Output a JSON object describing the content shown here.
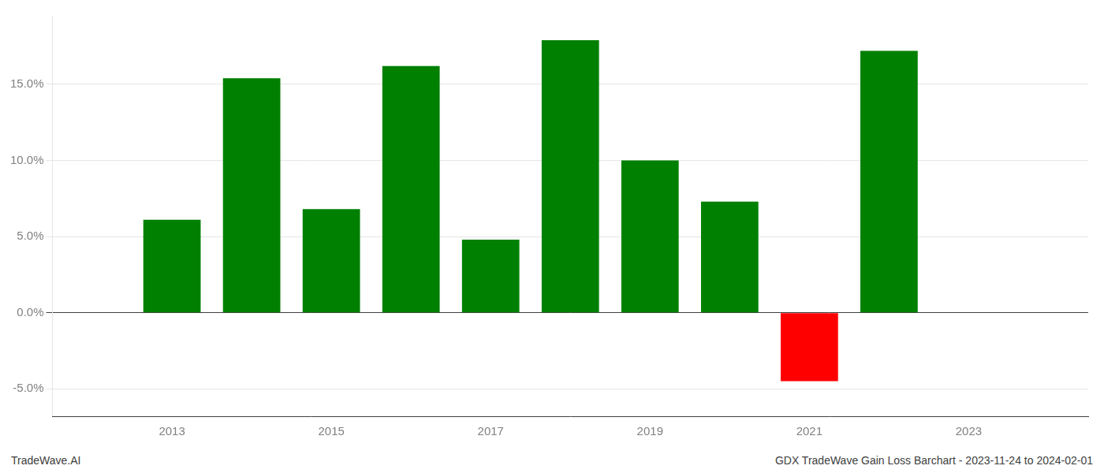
{
  "chart_data": {
    "type": "bar",
    "x": [
      2013,
      2014,
      2015,
      2016,
      2017,
      2018,
      2019,
      2020,
      2021,
      2022
    ],
    "values": [
      0.061,
      0.154,
      0.068,
      0.162,
      0.048,
      0.179,
      0.1,
      0.073,
      -0.045,
      0.172
    ],
    "colors": [
      "#008000",
      "#008000",
      "#008000",
      "#008000",
      "#008000",
      "#008000",
      "#008000",
      "#008000",
      "#ff0000",
      "#008000"
    ],
    "xlim": [
      2011.5,
      2024.5
    ],
    "xticks": [
      2013,
      2015,
      2017,
      2019,
      2021,
      2023
    ],
    "ylim": [
      -0.068,
      0.195
    ],
    "yticks": [
      {
        "value": -0.05,
        "label": "-5.0%"
      },
      {
        "value": 0.0,
        "label": "0.0%"
      },
      {
        "value": 0.05,
        "label": "5.0%"
      },
      {
        "value": 0.1,
        "label": "10.0%"
      },
      {
        "value": 0.15,
        "label": "15.0%"
      }
    ],
    "grid": true,
    "annotations": [
      "TradeWave.AI",
      "GDX TradeWave Gain Loss Barchart - 2023-11-24 to 2024-02-01"
    ]
  }
}
